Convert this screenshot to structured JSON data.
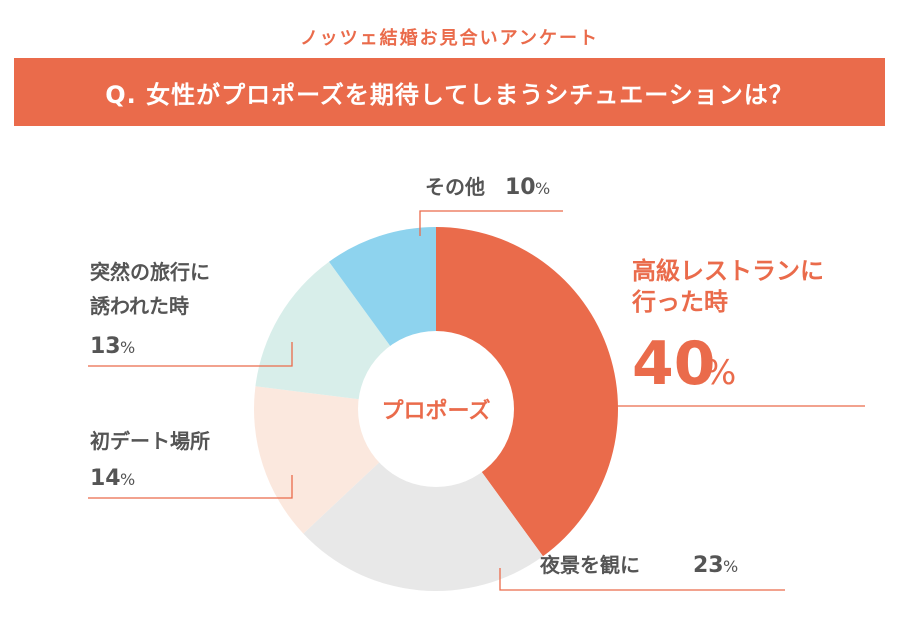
{
  "header": {
    "survey_title": "ノッツェ結婚お見合いアンケート",
    "question": "Q. 女性がプロポーズを期待してしまうシチュエーションは？"
  },
  "chart_data": {
    "type": "pie",
    "center_label": "プロポーズ",
    "slices": [
      {
        "label": "高級レストランに行った時",
        "label_lines": [
          "高級レストランに",
          "行った時"
        ],
        "value": 40,
        "display": "40",
        "unit": "%",
        "color": "#ea6b4b"
      },
      {
        "label": "夜景を観に",
        "label_lines": [
          "夜景を観に"
        ],
        "value": 23,
        "display": "23",
        "unit": "%",
        "color": "#e8e8e8"
      },
      {
        "label": "初デート場所",
        "label_lines": [
          "初デート場所"
        ],
        "value": 14,
        "display": "14",
        "unit": "%",
        "color": "#fbe8de"
      },
      {
        "label": "突然の旅行に誘われた時",
        "label_lines": [
          "突然の旅行に",
          "誘われた時"
        ],
        "value": 13,
        "display": "13",
        "unit": "%",
        "color": "#d8eeea"
      },
      {
        "label": "その他",
        "label_lines": [
          "その他"
        ],
        "value": 10,
        "display": "10",
        "unit": "%",
        "color": "#8ed3ee"
      }
    ]
  }
}
